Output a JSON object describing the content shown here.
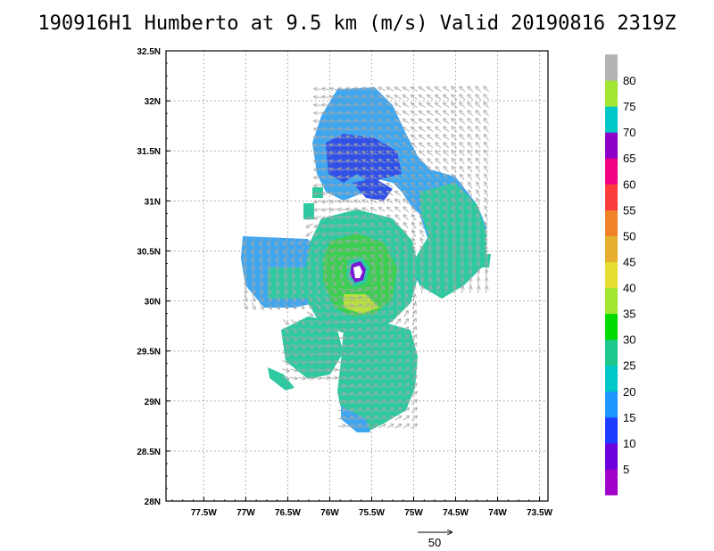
{
  "title": "190916H1 Humberto at 9.5 km (m/s) Valid 20190816 2319Z",
  "chart_data": {
    "type": "heatmap",
    "title": "190916H1 Humberto at 9.5 km (m/s) Valid 20190816 2319Z",
    "x_ticks": [
      "77.5W",
      "77W",
      "76.5W",
      "76W",
      "75.5W",
      "75W",
      "74.5W",
      "74W",
      "73.5W"
    ],
    "y_ticks": [
      "32.5N",
      "32N",
      "31.5N",
      "31N",
      "30.5N",
      "30N",
      "29.5N",
      "29N",
      "28.5N",
      "28N"
    ],
    "xlim": [
      -77.95,
      -73.4
    ],
    "ylim": [
      28.0,
      32.5
    ],
    "grid": true,
    "colorbar": {
      "labels": [
        "5",
        "10",
        "15",
        "20",
        "25",
        "30",
        "35",
        "40",
        "45",
        "50",
        "55",
        "60",
        "65",
        "70",
        "75",
        "80"
      ],
      "colors": [
        "#a000c8",
        "#6e00dc",
        "#1e3cff",
        "#1e96ff",
        "#00c8c8",
        "#1ec88c",
        "#00dc00",
        "#a0e632",
        "#e6dc32",
        "#e6af2d",
        "#f08228",
        "#fa3c3c",
        "#f00082",
        "#8c00c8",
        "#00c8c8",
        "#a0e632",
        "#b4b4b4"
      ]
    },
    "reference_vector": {
      "label": "50",
      "value": 50
    },
    "storm_center": {
      "lon": -75.62,
      "lat": 30.27
    }
  }
}
